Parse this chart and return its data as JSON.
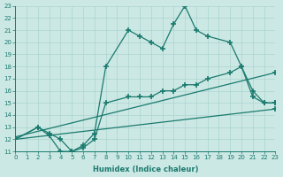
{
  "xlabel": "Humidex (Indice chaleur)",
  "ylabel": "",
  "bg_color": "#cce8e4",
  "grid_color": "#aad4d0",
  "line_color": "#1a7a6e",
  "xlim": [
    0,
    23
  ],
  "ylim": [
    11,
    23
  ],
  "xticks": [
    0,
    1,
    2,
    3,
    4,
    5,
    6,
    7,
    8,
    9,
    10,
    11,
    12,
    13,
    14,
    15,
    16,
    17,
    18,
    19,
    20,
    21,
    22,
    23
  ],
  "yticks": [
    11,
    12,
    13,
    14,
    15,
    16,
    17,
    18,
    19,
    20,
    21,
    22,
    23
  ],
  "line1_x": [
    0,
    2,
    3,
    4,
    5,
    6,
    7,
    8,
    10,
    11,
    12,
    13,
    14,
    15,
    16,
    17,
    19,
    20,
    21,
    22,
    23
  ],
  "line1_y": [
    12,
    13,
    12.5,
    12,
    11,
    11.5,
    12.5,
    18,
    21,
    20.5,
    20,
    19.5,
    21.5,
    23,
    21,
    20.5,
    20,
    18,
    16,
    15,
    15
  ],
  "line2_x": [
    0,
    2,
    3,
    4,
    5,
    6,
    7,
    8,
    10,
    11,
    12,
    13,
    14,
    15,
    16,
    17,
    19,
    20,
    21,
    22,
    23
  ],
  "line2_y": [
    12,
    13,
    12.3,
    11,
    11,
    11.3,
    12,
    15,
    15.5,
    15.5,
    15.5,
    16,
    16,
    16.5,
    16.5,
    17,
    17.5,
    18,
    15.5,
    15,
    15
  ],
  "line3_x": [
    0,
    23
  ],
  "line3_y": [
    12.2,
    17.5
  ],
  "line4_x": [
    0,
    23
  ],
  "line4_y": [
    12.0,
    14.5
  ]
}
